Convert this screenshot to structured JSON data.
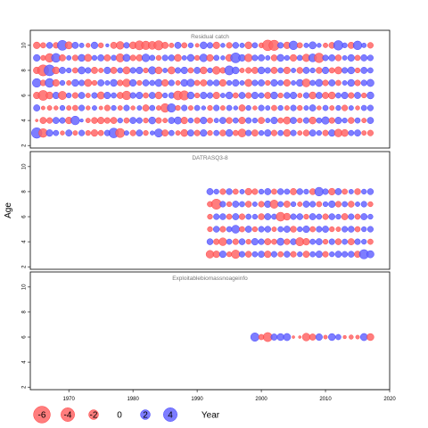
{
  "chart_data": {
    "type": "scatter",
    "subtype": "bubble-residuals",
    "ylabel": "Age",
    "xlabel": "Year",
    "x_ticks": [
      1970,
      1980,
      1990,
      2000,
      2010,
      2020
    ],
    "y_ticks": [
      2,
      4,
      6,
      8,
      10
    ],
    "xlim": [
      1964,
      2020
    ],
    "ylim": [
      1.8,
      11.2
    ],
    "colors": {
      "negative": "#ff6666",
      "positive": "#6666ff",
      "edge_negative": "#ff3333",
      "edge_positive": "#3333ff"
    },
    "legend": {
      "title": "Year",
      "entries": [
        {
          "label": "-6",
          "value": -6
        },
        {
          "label": "-4",
          "value": -4
        },
        {
          "label": "-2",
          "value": -2
        },
        {
          "label": "0",
          "value": 0
        },
        {
          "label": "2",
          "value": 2
        },
        {
          "label": "4",
          "value": 4
        }
      ]
    },
    "panels": [
      {
        "title": "Residual catch",
        "years": [
          1965,
          2017
        ],
        "ages": [
          3,
          4,
          5,
          6,
          7,
          8,
          9,
          10
        ],
        "rows": {
          "10": [
            -1.2,
            -0.8,
            1.0,
            -0.9,
            2.6,
            -1.4,
            1.1,
            0.6,
            -0.5,
            1.2,
            -0.7,
            0.3,
            -1.1,
            -1.6,
            0.9,
            -1.3,
            -2.2,
            -1.9,
            -1.7,
            -2.3,
            -1.1,
            -0.6,
            1.1,
            -0.8,
            0.7,
            -0.4,
            1.3,
            0.9,
            -1.2,
            0.5,
            -0.9,
            1.0,
            0.6,
            -1.3,
            0.8,
            -0.7,
            -3.0,
            -2.8,
            0.9,
            -1.2,
            2.0,
            -0.8,
            0.6,
            1.4,
            0.5,
            -0.6,
            -1.0,
            2.4,
            0.7,
            -1.1,
            2.0,
            0.6,
            -0.9
          ],
          "9": [
            1.2,
            -0.7,
            -2.0,
            2.1,
            -1.1,
            0.6,
            -0.9,
            1.3,
            -1.4,
            0.7,
            1.1,
            -1.1,
            0.8,
            -1.8,
            1.4,
            -0.9,
            -1.1,
            1.6,
            0.8,
            -0.7,
            0.9,
            1.0,
            -1.3,
            0.6,
            1.3,
            -0.7,
            1.6,
            -1.2,
            0.8,
            0.5,
            -1.3,
            2.6,
            1.2,
            -1.6,
            0.9,
            1.1,
            0.6,
            -1.0,
            1.3,
            0.7,
            -1.2,
            0.8,
            -1.5,
            1.7,
            -2.4,
            0.9,
            1.1,
            -1.0,
            0.6,
            1.2,
            -0.8,
            1.1,
            0.9
          ],
          "8": [
            -1.2,
            -3.2,
            3.1,
            -1.3,
            1.1,
            0.7,
            -0.8,
            1.4,
            0.9,
            -1.1,
            -0.6,
            1.2,
            -1.1,
            0.8,
            -1.4,
            0.9,
            1.2,
            -0.7,
            1.5,
            -1.3,
            0.6,
            -1.4,
            0.9,
            1.2,
            -0.8,
            1.1,
            -1.3,
            0.7,
            -1.6,
            -0.9,
            2.2,
            1.3,
            -0.6,
            -0.9,
            -1.1,
            1.3,
            0.9,
            -1.1,
            0.8,
            -1.2,
            0.6,
            -1.0,
            1.1,
            0.7,
            -1.0,
            1.2,
            -0.8,
            -1.4,
            0.9,
            1.3,
            -0.7,
            1.1,
            0.8
          ],
          "7": [
            2.0,
            -0.9,
            2.1,
            -1.2,
            0.7,
            -0.6,
            1.3,
            0.9,
            -1.4,
            -0.7,
            1.1,
            0.6,
            1.3,
            -0.9,
            -1.6,
            1.2,
            -0.7,
            1.1,
            0.8,
            1.4,
            -1.2,
            0.9,
            -0.6,
            1.3,
            1.5,
            -0.8,
            -1.1,
            0.9,
            1.0,
            -1.2,
            0.7,
            1.2,
            0.6,
            -1.4,
            0.9,
            1.1,
            -0.7,
            1.2,
            0.8,
            -1.2,
            0.6,
            1.3,
            -1.7,
            0.8,
            1.4,
            -0.9,
            1.1,
            -0.8,
            0.6,
            1.3,
            -0.9,
            0.9,
            1.4
          ],
          "6": [
            -1.2,
            -2.6,
            -1.3,
            1.2,
            -1.8,
            0.7,
            -0.9,
            1.1,
            -0.6,
            0.9,
            -1.4,
            1.2,
            0.8,
            -1.1,
            -2.0,
            0.9,
            1.2,
            -0.8,
            1.1,
            -1.3,
            0.7,
            0.9,
            -2.1,
            -2.3,
            1.3,
            -0.7,
            1.2,
            0.9,
            -1.2,
            0.6,
            1.3,
            -0.8,
            1.1,
            -0.9,
            1.2,
            0.8,
            -1.1,
            1.3,
            -0.7,
            1.0,
            1.2,
            -0.6,
            0.9,
            -1.3,
            1.1,
            -1.1,
            -1.3,
            0.8,
            1.2,
            -0.9,
            1.1,
            -0.7,
            1.3
          ],
          "5": [
            1.1,
            -0.4,
            -0.6,
            -0.5,
            0.7,
            -0.6,
            -0.8,
            0.9,
            -0.5,
            0.6,
            -0.4,
            -0.9,
            0.7,
            -0.6,
            0.9,
            -0.5,
            0.6,
            -1.1,
            0.8,
            -0.6,
            -2.0,
            1.9,
            -0.7,
            0.9,
            -0.6,
            0.8,
            0.5,
            -0.7,
            0.9,
            -0.6,
            0.8,
            0.5,
            -1.1,
            0.7,
            -0.5,
            0.9,
            0.6,
            -0.8,
            0.7,
            -0.6,
            0.9,
            -0.7,
            0.6,
            1.1,
            -0.5,
            0.8,
            -0.6,
            0.7,
            -0.9,
            0.6,
            -0.5,
            0.8,
            0.9
          ],
          "4": [
            -0.2,
            -1.1,
            -0.9,
            1.1,
            0.9,
            -1.2,
            2.0,
            0.3,
            -0.6,
            -1.0,
            -1.2,
            -0.9,
            -1.1,
            0.7,
            -0.8,
            1.1,
            0.9,
            -0.7,
            1.3,
            -0.9,
            -0.6,
            1.1,
            1.4,
            -1.2,
            0.7,
            -0.9,
            1.2,
            -0.8,
            0.6,
            1.1,
            -1.0,
            0.8,
            -1.2,
            0.9,
            0.7,
            -1.1,
            0.6,
            1.2,
            -0.8,
            -1.4,
            1.1,
            -0.7,
            0.9,
            -1.3,
            0.8,
            1.5,
            -0.9,
            1.2,
            0.7,
            -1.0,
            0.8,
            -0.6,
            1.1
          ],
          "3": [
            2.9,
            -2.0,
            1.2,
            0.8,
            -0.5,
            1.1,
            -0.6,
            0.9,
            -0.7,
            -1.2,
            -0.8,
            0.9,
            2.5,
            -2.2,
            0.6,
            -0.9,
            1.1,
            -0.7,
            0.5,
            1.8,
            -1.1,
            0.8,
            -0.6,
            -1.3,
            1.1,
            -0.9,
            1.2,
            -0.7,
            0.8,
            -1.0,
            1.3,
            -0.8,
            -1.7,
            0.9,
            -1.1,
            0.7,
            1.2,
            -0.9,
            0.8,
            -1.3,
            0.9,
            -0.6,
            -1.0,
            1.1,
            0.7,
            -0.9,
            1.2,
            -1.6,
            -1.3,
            0.8,
            1.1,
            -0.6,
            -0.9
          ]
        }
      },
      {
        "title": "DATRASQ3-8",
        "years": [
          1992,
          2017
        ],
        "ages": [
          3,
          4,
          5,
          6,
          7,
          8
        ],
        "rows": {
          "8": [
            1.1,
            0.7,
            -0.9,
            1.0,
            -0.8,
            0.6,
            -1.2,
            -0.9,
            0.7,
            1.1,
            -0.8,
            1.0,
            0.8,
            -1.1,
            1.0,
            0.7,
            -1.0,
            2.0,
            0.9,
            -1.2,
            1.1,
            -0.8,
            0.6,
            -1.0,
            0.7,
            1.0
          ],
          "7": [
            -0.8,
            -2.7,
            0.9,
            -0.7,
            1.1,
            0.8,
            -1.0,
            0.6,
            -0.9,
            1.2,
            -1.8,
            0.8,
            -1.1,
            0.7,
            -0.6,
            1.1,
            0.9,
            -0.8,
            0.7,
            1.2,
            -0.9,
            0.8,
            -1.0,
            0.6,
            0.9,
            -0.7
          ],
          "6": [
            -0.7,
            0.9,
            1.0,
            -0.8,
            1.1,
            -0.9,
            0.8,
            0.7,
            -1.0,
            1.1,
            0.8,
            -2.1,
            -1.3,
            0.9,
            1.0,
            -0.7,
            1.1,
            0.8,
            -0.9,
            1.0,
            0.7,
            -1.1,
            0.9,
            -0.8,
            1.1,
            0.7
          ],
          "5": [
            -0.7,
            1.0,
            -0.9,
            0.8,
            1.7,
            -0.8,
            1.1,
            -0.7,
            0.9,
            1.0,
            -0.6,
            0.8,
            1.1,
            -1.0,
            0.7,
            1.2,
            -0.8,
            0.9,
            1.1,
            -0.7,
            -0.6,
            0.9,
            1.0,
            -0.8,
            0.7,
            0.9
          ],
          "4": [
            1.0,
            -0.9,
            -1.6,
            0.8,
            -0.9,
            1.0,
            -0.7,
            1.2,
            0.9,
            -1.1,
            -0.8,
            1.4,
            -0.9,
            1.0,
            -1.8,
            -1.2,
            0.8,
            1.1,
            -0.7,
            0.9,
            -1.0,
            0.8,
            -1.1,
            0.9,
            0.7,
            -0.8
          ],
          "3": [
            -1.6,
            -1.2,
            1.2,
            -0.7,
            -1.9,
            0.9,
            -1.0,
            0.8,
            1.1,
            -1.2,
            0.9,
            -0.8,
            1.0,
            -0.9,
            0.7,
            -1.1,
            0.8,
            1.2,
            -0.9,
            0.7,
            1.1,
            0.9,
            1.0,
            -1.1,
            2.3,
            1.4
          ]
        }
      },
      {
        "title": "Exploitablebiomassnoageinfo",
        "years": [
          1999,
          2017
        ],
        "ages": [
          6
        ],
        "rows": {
          "6": [
            1.9,
            -0.8,
            -2.2,
            1.1,
            1.3,
            1.4,
            -0.2,
            -0.2,
            -1.6,
            -1.1,
            1.2,
            -0.4,
            1.3,
            0.8,
            -0.3,
            -0.5,
            -0.4,
            1.4,
            -1.3
          ]
        }
      }
    ]
  }
}
